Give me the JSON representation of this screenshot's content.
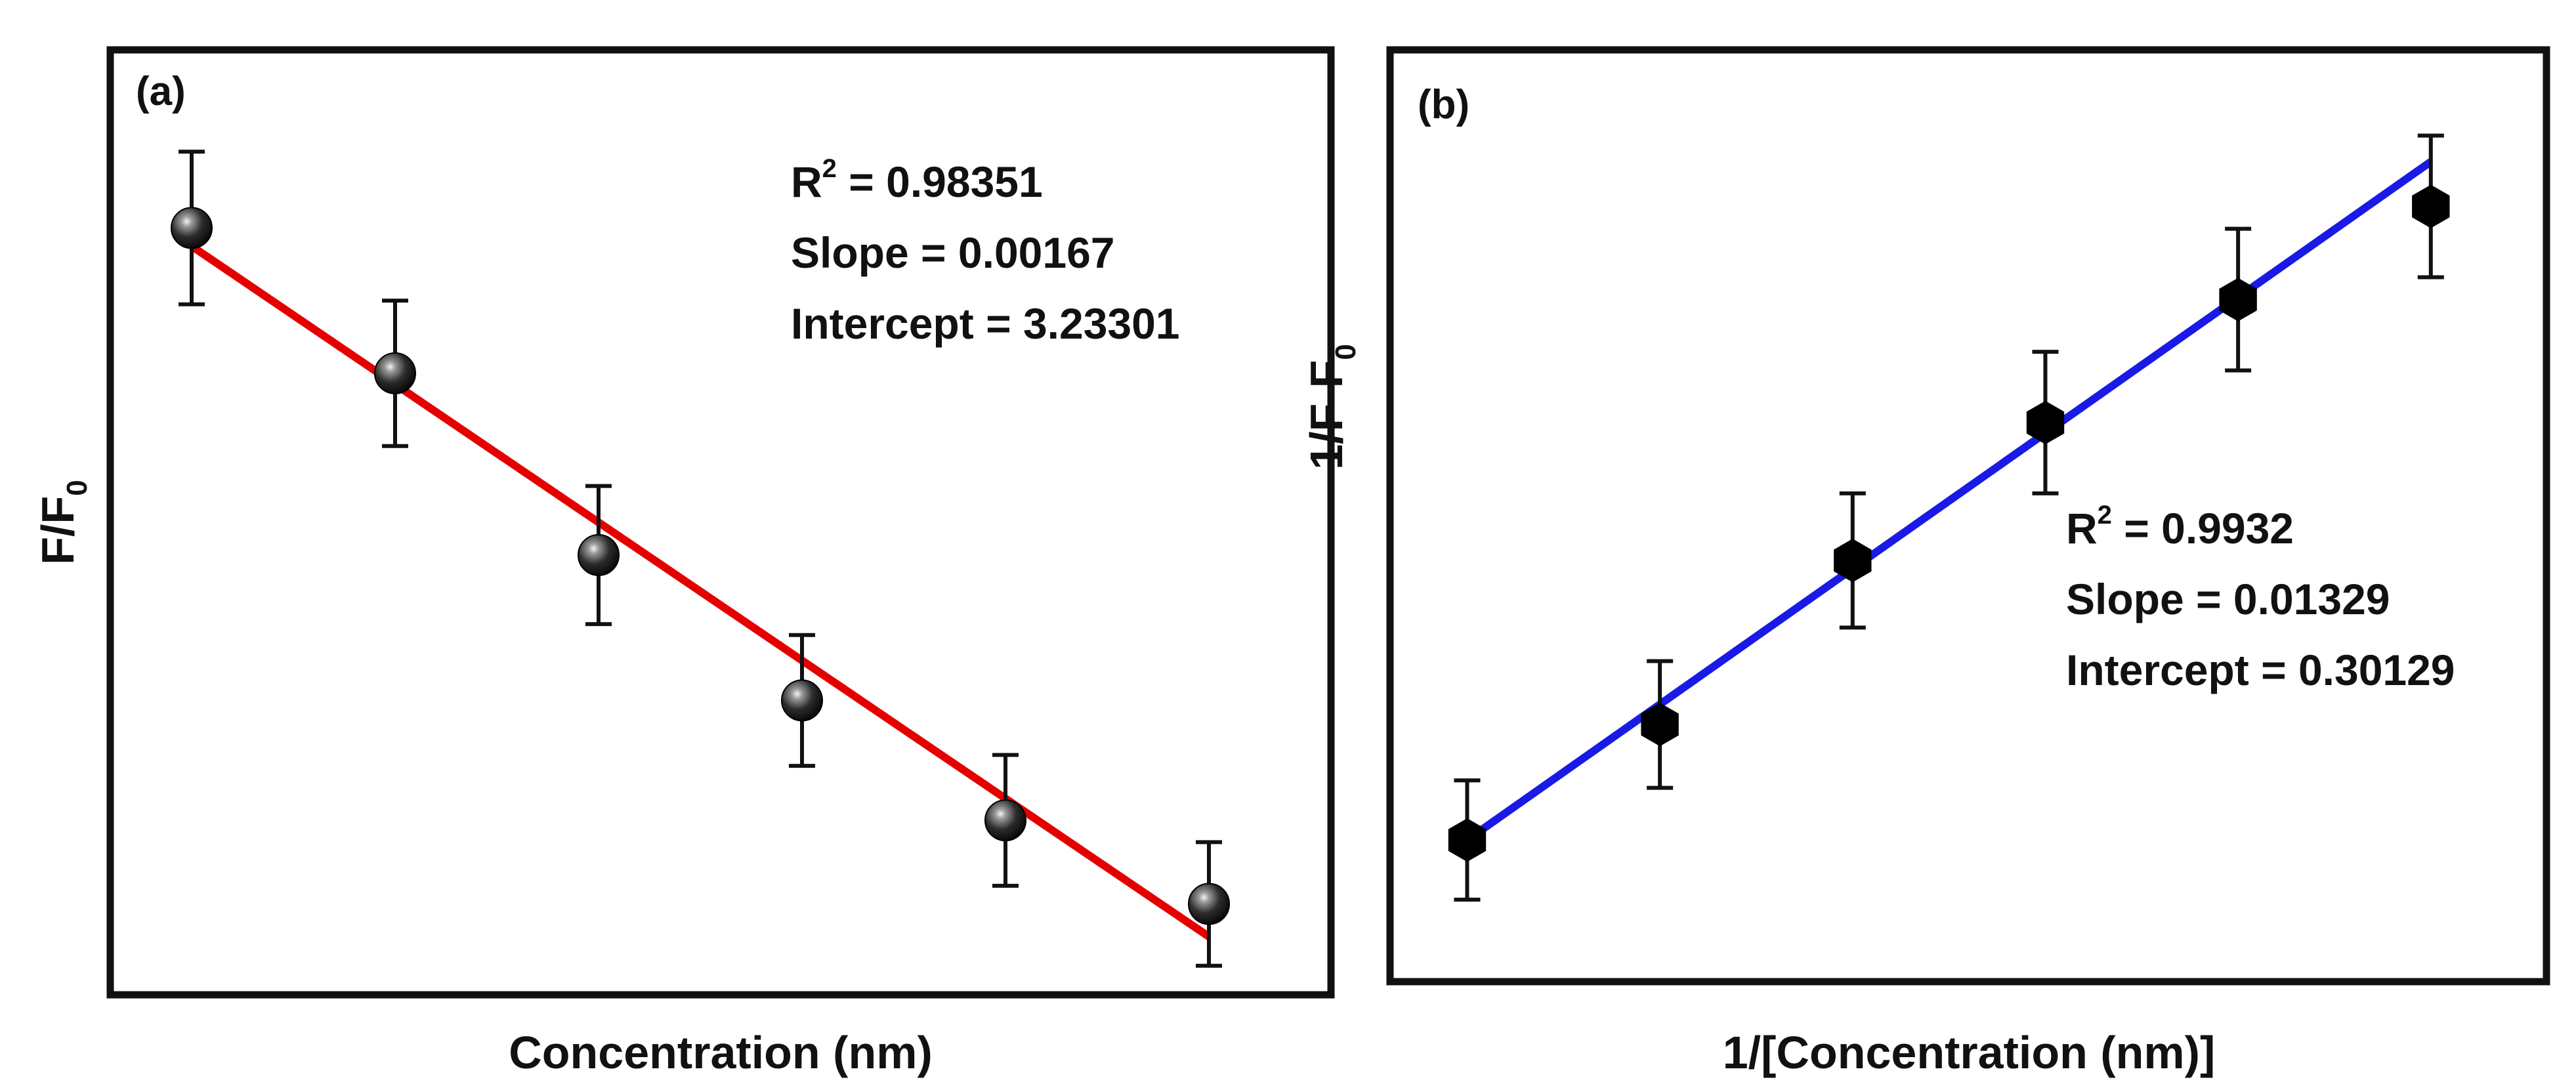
{
  "chart_data": [
    {
      "type": "scatter",
      "panel_label": "(a)",
      "xlabel": "Concentration (nm)",
      "ylabel": {
        "main": "F/F",
        "sub": "0"
      },
      "ticks_shown": false,
      "marker": "sphere",
      "fit_color": "#e50000",
      "points": [
        {
          "x": 1,
          "y": 0.905,
          "err": 0.105
        },
        {
          "x": 2,
          "y": 0.705,
          "err": 0.1
        },
        {
          "x": 3,
          "y": 0.455,
          "err": 0.095
        },
        {
          "x": 4,
          "y": 0.255,
          "err": 0.09
        },
        {
          "x": 5,
          "y": 0.09,
          "err": 0.09
        },
        {
          "x": 6,
          "y": -0.025,
          "err": 0.085
        }
      ],
      "fit": {
        "x": [
          1,
          6
        ],
        "y": [
          0.88,
          -0.07
        ]
      },
      "xlim": [
        0.6,
        6.6
      ],
      "ylim": [
        -0.15,
        1.15
      ],
      "stats": {
        "r2_label": "R",
        "r2_sup": "2",
        "r2_value": " = 0.98351",
        "slope": "Slope = 0.00167",
        "intercept": "Intercept = 3.23301"
      }
    },
    {
      "type": "scatter",
      "panel_label": "(b)",
      "xlabel": "1/[Concentration (nm)]",
      "ylabel": {
        "main": "1/F-F",
        "sub": "0"
      },
      "ticks_shown": false,
      "marker": "hexagon",
      "fit_color": "#1a1ae6",
      "points": [
        {
          "x": 1,
          "y": 0.19,
          "err": 0.08
        },
        {
          "x": 2,
          "y": 0.345,
          "err": 0.085
        },
        {
          "x": 3,
          "y": 0.565,
          "err": 0.09
        },
        {
          "x": 4,
          "y": 0.75,
          "err": 0.095
        },
        {
          "x": 5,
          "y": 0.915,
          "err": 0.095
        },
        {
          "x": 6,
          "y": 1.04,
          "err": 0.095
        }
      ],
      "fit": {
        "x": [
          1,
          6
        ],
        "y": [
          0.19,
          1.1
        ]
      },
      "xlim": [
        0.6,
        6.6
      ],
      "ylim": [
        0.0,
        1.25
      ],
      "stats": {
        "r2_label": "R",
        "r2_sup": "2",
        "r2_value": " = 0.9932",
        "slope": "Slope = 0.01329",
        "intercept": "Intercept = 0.30129"
      }
    }
  ]
}
